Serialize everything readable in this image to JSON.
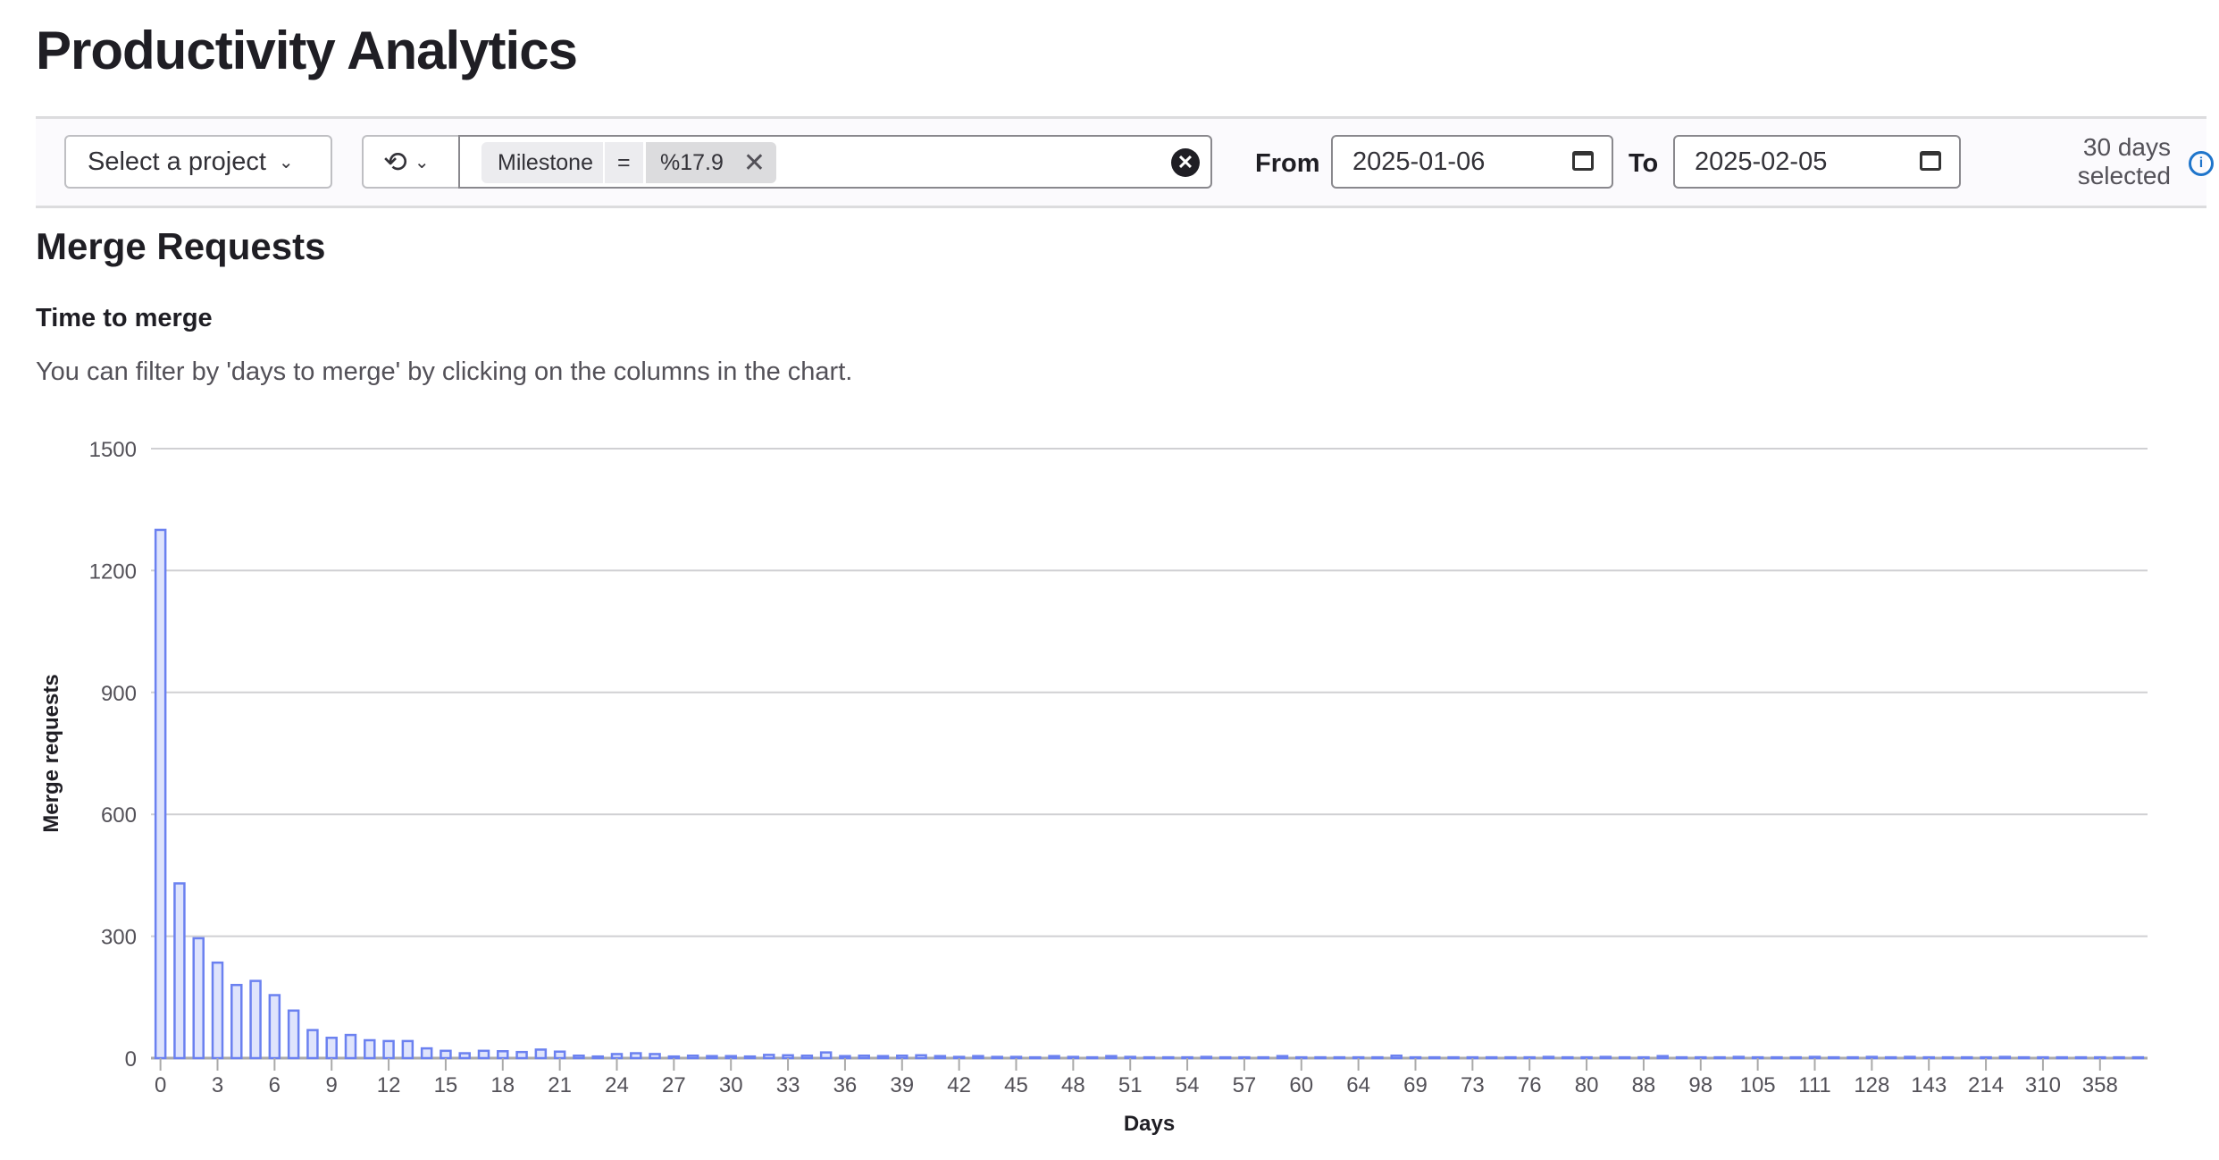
{
  "page": {
    "title": "Productivity Analytics"
  },
  "filters": {
    "project_select": "Select a project",
    "token": {
      "key": "Milestone",
      "operator": "=",
      "value": "%17.9"
    },
    "from_label": "From",
    "from_value": "2025-01-06",
    "to_label": "To",
    "to_value": "2025-02-05",
    "days_selected_line1": "30 days",
    "days_selected_line2": "selected"
  },
  "section": {
    "title": "Merge Requests",
    "chart_title": "Time to merge",
    "description": "You can filter by 'days to merge' by clicking on the columns in the chart."
  },
  "colors": {
    "bar_fill": "#dfe4fc",
    "bar_stroke": "#6b81f0",
    "grid": "#d0d0d3"
  },
  "chart_data": {
    "type": "bar",
    "xlabel": "Days",
    "ylabel": "Merge requests",
    "ylim": [
      0,
      1500
    ],
    "yticks": [
      0,
      300,
      600,
      900,
      1200,
      1500
    ],
    "grid": true,
    "categories": [
      0,
      1,
      2,
      3,
      4,
      5,
      6,
      7,
      8,
      9,
      10,
      11,
      12,
      13,
      14,
      15,
      16,
      17,
      18,
      19,
      20,
      21,
      22,
      23,
      24,
      25,
      26,
      27,
      28,
      29,
      30,
      31,
      32,
      33,
      34,
      35,
      36,
      37,
      38,
      39,
      40,
      41,
      42,
      43,
      44,
      45,
      46,
      47,
      48,
      49,
      50,
      51,
      52,
      53,
      54,
      55,
      56,
      57,
      58,
      59,
      60,
      61,
      62,
      64,
      65,
      67,
      69,
      70,
      71,
      73,
      74,
      75,
      76,
      77,
      78,
      80,
      83,
      85,
      88,
      91,
      95,
      98,
      101,
      103,
      105,
      107,
      109,
      111,
      116,
      121,
      128,
      133,
      138,
      143,
      160,
      185,
      214,
      245,
      280,
      310,
      325,
      340,
      358,
      380,
      410
    ],
    "xtick_labels": [
      "0",
      "3",
      "6",
      "9",
      "12",
      "15",
      "18",
      "21",
      "24",
      "27",
      "30",
      "33",
      "36",
      "39",
      "42",
      "45",
      "48",
      "51",
      "54",
      "57",
      "60",
      "64",
      "69",
      "73",
      "76",
      "80",
      "88",
      "98",
      "105",
      "111",
      "128",
      "143",
      "214",
      "310",
      "358"
    ],
    "values": [
      1300,
      430,
      295,
      235,
      180,
      190,
      155,
      117,
      69,
      50,
      57,
      44,
      42,
      42,
      24,
      18,
      12,
      18,
      17,
      15,
      21,
      16,
      6,
      4,
      10,
      12,
      10,
      4,
      6,
      5,
      5,
      4,
      8,
      7,
      6,
      14,
      5,
      6,
      5,
      6,
      7,
      5,
      3,
      5,
      3,
      3,
      2,
      5,
      3,
      2,
      5,
      3,
      2,
      2,
      2,
      3,
      2,
      2,
      2,
      5,
      2,
      2,
      2,
      2,
      2,
      6,
      2,
      2,
      2,
      2,
      2,
      2,
      2,
      3,
      2,
      2,
      3,
      2,
      2,
      5,
      2,
      2,
      2,
      3,
      2,
      2,
      2,
      3,
      2,
      2,
      3,
      2,
      3,
      2,
      2,
      2,
      2,
      3,
      2,
      2,
      2,
      2,
      2,
      2,
      2
    ]
  }
}
